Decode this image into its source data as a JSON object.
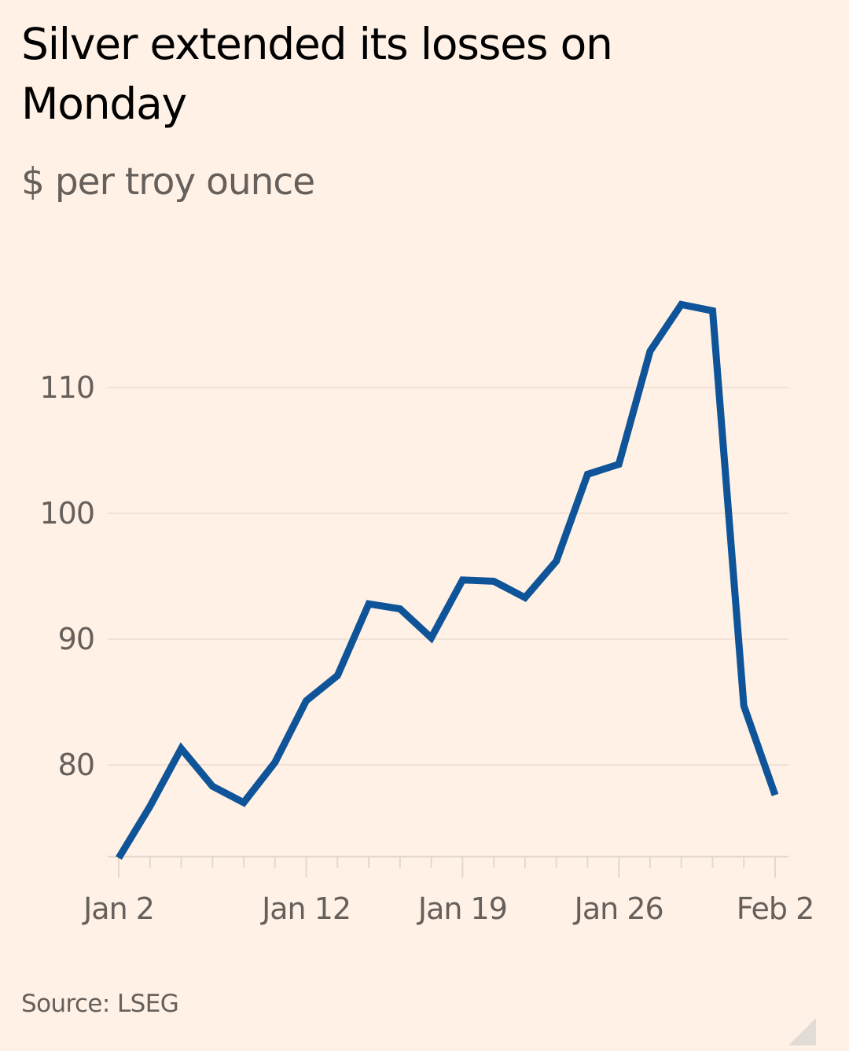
{
  "header": {
    "title": "Silver extended its losses on Monday",
    "subtitle": "$ per troy ounce"
  },
  "footer": {
    "source": "Source: LSEG"
  },
  "colors": {
    "background": "#fff1e5",
    "line": "#0f5499",
    "gridline": "#f0e2d6",
    "axis_text": "#66605c",
    "title_text": "#000000"
  },
  "chart_data": {
    "type": "line",
    "title": "Silver extended its losses on Monday",
    "subtitle": "$ per troy ounce",
    "xlabel": "",
    "ylabel": "$ per troy ounce",
    "ylim": [
      72.7,
      120
    ],
    "yticks": [
      80,
      90,
      100,
      110
    ],
    "grid": true,
    "legend": "none",
    "x_tick_labels": [
      {
        "label": "Jan 2",
        "index": 0
      },
      {
        "label": "Jan 12",
        "index": 6
      },
      {
        "label": "Jan 19",
        "index": 11
      },
      {
        "label": "Jan 26",
        "index": 16
      },
      {
        "label": "Feb 2",
        "index": 21
      }
    ],
    "x_minor_tick_count": 22,
    "series": [
      {
        "name": "Silver",
        "values": [
          72.6,
          76.7,
          81.3,
          78.3,
          77.0,
          80.2,
          85.1,
          87.1,
          92.8,
          92.4,
          90.1,
          94.7,
          94.6,
          93.3,
          96.2,
          103.1,
          103.9,
          112.9,
          116.6,
          116.1,
          84.7,
          77.6
        ]
      }
    ],
    "source": "Source: LSEG"
  }
}
